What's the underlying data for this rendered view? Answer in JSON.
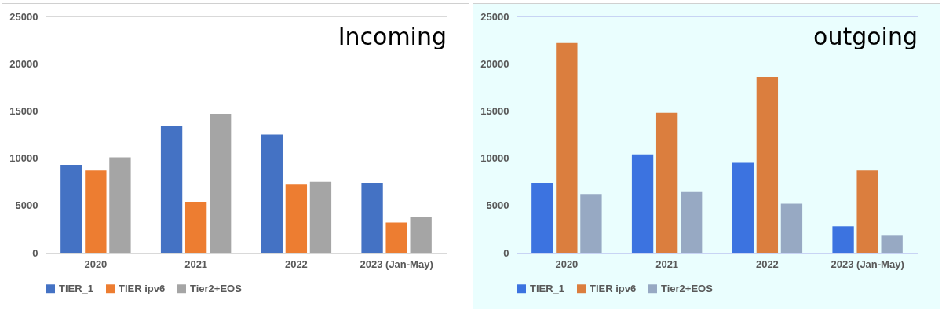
{
  "chart_data": [
    {
      "type": "bar",
      "title": "Incoming",
      "categories": [
        "2020",
        "2021",
        "2022",
        "2023 (Jan-May)"
      ],
      "series": [
        {
          "name": "TIER_1",
          "color": "#4472c4",
          "values": [
            9300,
            13400,
            12500,
            7400
          ]
        },
        {
          "name": "TIER ipv6",
          "color": "#ed7d31",
          "values": [
            8700,
            5400,
            7200,
            3200
          ]
        },
        {
          "name": "Tier2+EOS",
          "color": "#a5a5a5",
          "values": [
            10100,
            14700,
            7500,
            3800
          ]
        }
      ],
      "ylim": [
        0,
        25000
      ],
      "yticks": [
        0,
        5000,
        10000,
        15000,
        20000,
        25000
      ],
      "grid": "y",
      "legend": "bottom"
    },
    {
      "type": "bar",
      "title": "outgoing",
      "categories": [
        "2020",
        "2021",
        "2022",
        "2023 (Jan-May)"
      ],
      "series": [
        {
          "name": "TIER_1",
          "color": "#3c73e0",
          "values": [
            7400,
            10400,
            9500,
            2800
          ]
        },
        {
          "name": "TIER ipv6",
          "color": "#db7e3e",
          "values": [
            22200,
            14800,
            18600,
            8700
          ]
        },
        {
          "name": "Tier2+EOS",
          "color": "#97a9c3",
          "values": [
            6200,
            6500,
            5200,
            1800
          ]
        }
      ],
      "ylim": [
        0,
        25000
      ],
      "yticks": [
        0,
        5000,
        10000,
        15000,
        20000,
        25000
      ],
      "grid": "y",
      "legend": "bottom"
    }
  ]
}
